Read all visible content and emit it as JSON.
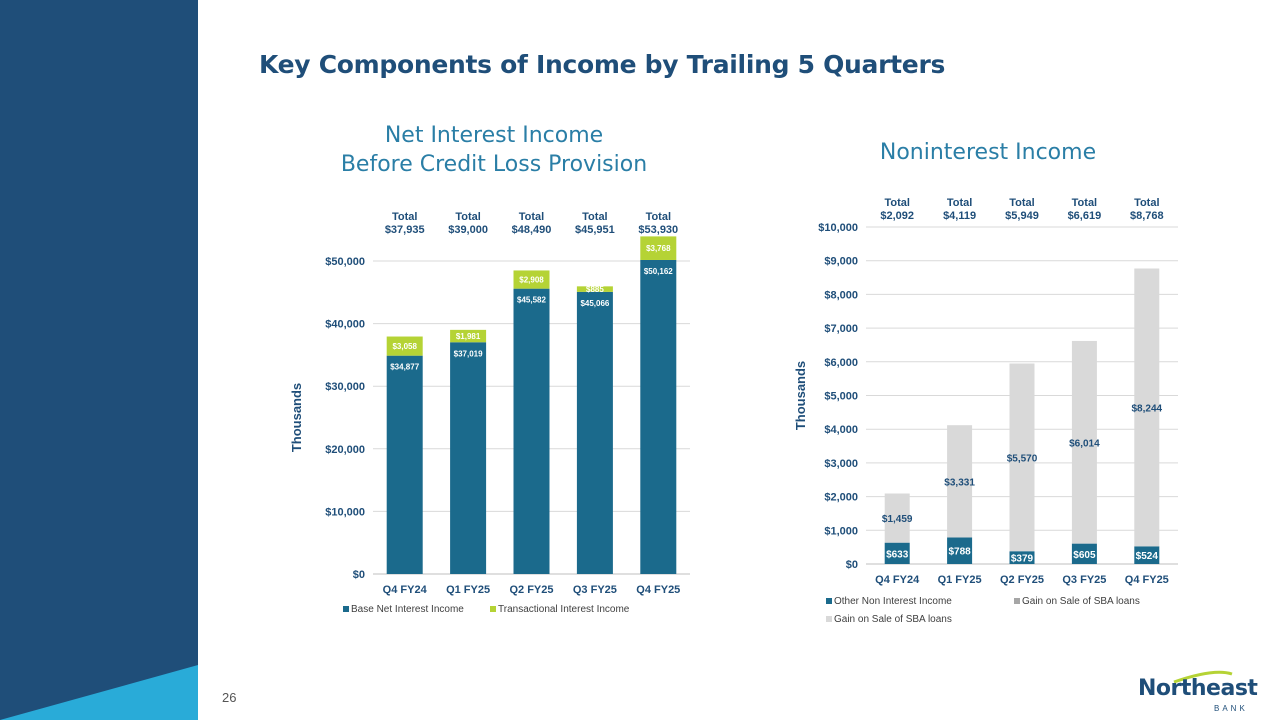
{
  "page": {
    "title": "Key Components of Income by Trailing 5 Quarters",
    "page_number": "26",
    "logo": {
      "name": "Northeast",
      "sub": "BANK"
    },
    "colors": {
      "navy": "#1f4e79",
      "teal": "#2a7ea6",
      "accent_cyan": "#29abd8"
    }
  },
  "chart_data": [
    {
      "type": "bar",
      "stacked": true,
      "title": "Net Interest Income\nBefore Credit Loss Provision",
      "ylabel": "Thousands",
      "ylim": [
        0,
        50000
      ],
      "yticks": [
        0,
        10000,
        20000,
        30000,
        40000,
        50000
      ],
      "ytick_labels": [
        "$0",
        "$10,000",
        "$20,000",
        "$30,000",
        "$40,000",
        "$50,000"
      ],
      "categories": [
        "Q4 FY24",
        "Q1 FY25",
        "Q2 FY25",
        "Q3 FY25",
        "Q4 FY25"
      ],
      "totals": [
        "Total\n$37,935",
        "Total\n$39,000",
        "Total\n$48,490",
        "Total\n$45,951",
        "Total\n$53,930"
      ],
      "series": [
        {
          "name": "Base Net Interest Income",
          "color": "#1b6a8c",
          "values": [
            34877,
            37019,
            45582,
            45066,
            50162
          ],
          "labels": [
            "$34,877",
            "$37,019",
            "$45,582",
            "$45,066",
            "$50,162"
          ]
        },
        {
          "name": "Transactional Interest Income",
          "color": "#b5d335",
          "values": [
            3058,
            1981,
            2908,
            885,
            3768
          ],
          "labels": [
            "$3,058",
            "$1,981",
            "$2,908",
            "$885",
            "$3,768"
          ]
        }
      ],
      "legend": "bottom",
      "grid": true
    },
    {
      "type": "bar",
      "stacked": true,
      "title": "Noninterest Income",
      "ylabel": "Thousands",
      "ylim": [
        0,
        10000
      ],
      "yticks": [
        0,
        1000,
        2000,
        3000,
        4000,
        5000,
        6000,
        7000,
        8000,
        9000,
        10000
      ],
      "ytick_labels": [
        "$0",
        "$1,000",
        "$2,000",
        "$3,000",
        "$4,000",
        "$5,000",
        "$6,000",
        "$7,000",
        "$8,000",
        "$9,000",
        "$10,000"
      ],
      "categories": [
        "Q4 FY24",
        "Q1 FY25",
        "Q2 FY25",
        "Q3 FY25",
        "Q4 FY25"
      ],
      "totals": [
        "Total\n$2,092",
        "Total\n$4,119",
        "Total\n$5,949",
        "Total\n$6,619",
        "Total\n$8,768"
      ],
      "series": [
        {
          "name": "Other Non Interest Income",
          "color": "#1b6a8c",
          "values": [
            633,
            788,
            379,
            605,
            524
          ],
          "labels": [
            "$633",
            "$788",
            "$379",
            "$605",
            "$524"
          ]
        },
        {
          "name": "Gain on Sale of SBA loans",
          "color": "#d9d9d9",
          "values": [
            1459,
            3331,
            5570,
            6014,
            8244
          ],
          "labels": [
            "$1,459",
            "$3,331",
            "$5,570",
            "$6,014",
            "$8,244"
          ]
        }
      ],
      "legend_entries": [
        {
          "label": "Other Non Interest Income",
          "color": "#1b6a8c"
        },
        {
          "label": "Gain on Sale of SBA loans",
          "color": "#a6a6a6"
        },
        {
          "label": "Gain on Sale of SBA loans",
          "color": "#d9d9d9"
        }
      ],
      "legend": "bottom",
      "grid": true
    }
  ]
}
